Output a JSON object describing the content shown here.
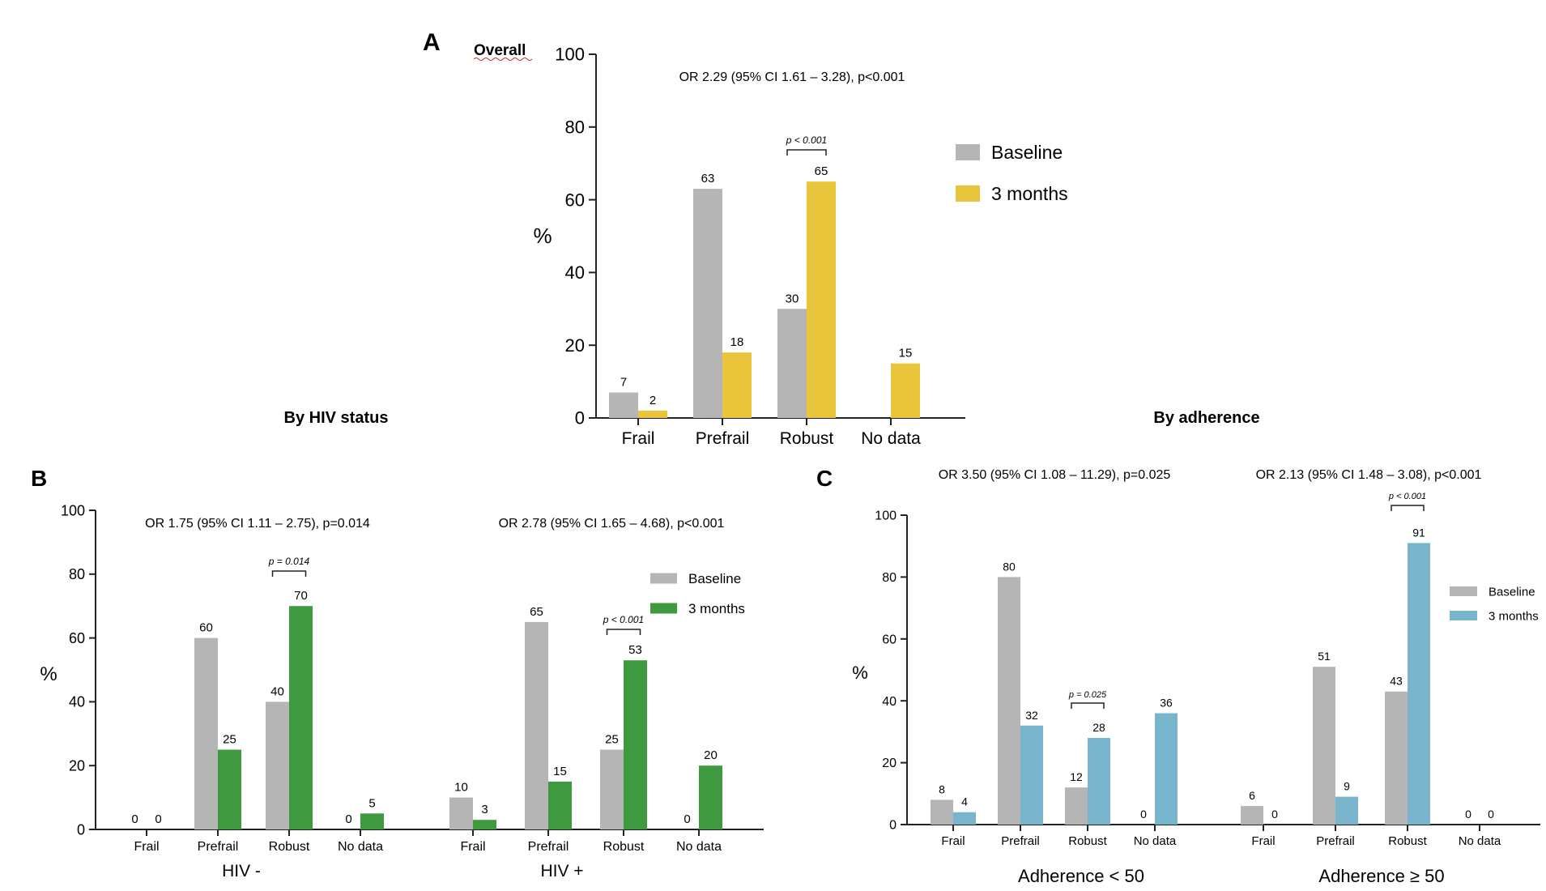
{
  "colors": {
    "baseline": "#b5b5b5",
    "panelA": "#e8c53a",
    "panelB": "#3f9a3f",
    "panelC": "#78b5cc",
    "axis": "#222222"
  },
  "section_titles": {
    "hiv": "By HIV status",
    "adherence": "By adherence"
  },
  "chart_data": [
    {
      "id": "A",
      "type": "bar",
      "panel_letter": "A",
      "title": "Overall",
      "ylabel": "%",
      "ylim": [
        0,
        100
      ],
      "yticks": [
        0,
        20,
        40,
        60,
        80,
        100
      ],
      "legend": [
        "Baseline",
        "3 months"
      ],
      "legend_position": "right",
      "groups": [
        {
          "label": "",
          "annotation": "OR 2.29 (95% CI 1.61 – 3.28), p<0.001",
          "categories": [
            "Frail",
            "Prefrail",
            "Robust",
            "No data"
          ],
          "series": [
            {
              "name": "Baseline",
              "values": [
                7,
                63,
                30,
                null
              ],
              "labels": [
                "7",
                "63",
                "30",
                ""
              ]
            },
            {
              "name": "3 months",
              "values": [
                2,
                18,
                65,
                15
              ],
              "labels": [
                "2",
                "18",
                "65",
                "15"
              ]
            }
          ],
          "bracket": {
            "category_index": 2,
            "text": "p < 0.001"
          }
        }
      ]
    },
    {
      "id": "B",
      "type": "bar",
      "panel_letter": "B",
      "title": "",
      "ylabel": "%",
      "ylim": [
        0,
        100
      ],
      "yticks": [
        0,
        20,
        40,
        60,
        80,
        100
      ],
      "legend": [
        "Baseline",
        "3 months"
      ],
      "legend_position": "top-right",
      "groups": [
        {
          "label": "HIV -",
          "annotation": "OR 1.75 (95% CI 1.11 – 2.75), p=0.014",
          "categories": [
            "Frail",
            "Prefrail",
            "Robust",
            "No data"
          ],
          "series": [
            {
              "name": "Baseline",
              "values": [
                0,
                60,
                40,
                0
              ],
              "labels": [
                "0",
                "60",
                "40",
                "0"
              ]
            },
            {
              "name": "3 months",
              "values": [
                0,
                25,
                70,
                5
              ],
              "labels": [
                "0",
                "25",
                "70",
                "5"
              ]
            }
          ],
          "bracket": {
            "category_index": 2,
            "text": "p = 0.014"
          }
        },
        {
          "label": "HIV +",
          "annotation": "OR 2.78 (95% CI 1.65 – 4.68), p<0.001",
          "categories": [
            "Frail",
            "Prefrail",
            "Robust",
            "No data"
          ],
          "series": [
            {
              "name": "Baseline",
              "values": [
                10,
                65,
                25,
                0
              ],
              "labels": [
                "10",
                "65",
                "25",
                "0"
              ]
            },
            {
              "name": "3 months",
              "values": [
                3,
                15,
                53,
                20
              ],
              "labels": [
                "3",
                "15",
                "53",
                "20"
              ]
            }
          ],
          "bracket": {
            "category_index": 2,
            "text": "p < 0.001"
          }
        }
      ]
    },
    {
      "id": "C",
      "type": "bar",
      "panel_letter": "C",
      "title": "",
      "ylabel": "%",
      "ylim": [
        0,
        100
      ],
      "yticks": [
        0,
        20,
        40,
        60,
        80,
        100
      ],
      "legend": [
        "Baseline",
        "3 months"
      ],
      "legend_position": "right",
      "groups": [
        {
          "label": "Adherence < 50",
          "annotation": "OR 3.50 (95% CI 1.08 – 11.29), p=0.025",
          "categories": [
            "Frail",
            "Prefrail",
            "Robust",
            "No data"
          ],
          "series": [
            {
              "name": "Baseline",
              "values": [
                8,
                80,
                12,
                0
              ],
              "labels": [
                "8",
                "80",
                "12",
                "0"
              ]
            },
            {
              "name": "3 months",
              "values": [
                4,
                32,
                28,
                36
              ],
              "labels": [
                "4",
                "32",
                "28",
                "36"
              ]
            }
          ],
          "bracket": {
            "category_index": 2,
            "text": "p = 0.025"
          }
        },
        {
          "label": "Adherence ≥ 50",
          "annotation": "OR 2.13 (95% CI 1.48 – 3.08), p<0.001",
          "categories": [
            "Frail",
            "Prefrail",
            "Robust",
            "No data"
          ],
          "series": [
            {
              "name": "Baseline",
              "values": [
                6,
                51,
                43,
                0
              ],
              "labels": [
                "6",
                "51",
                "43",
                "0"
              ]
            },
            {
              "name": "3 months",
              "values": [
                0,
                9,
                91,
                0
              ],
              "labels": [
                "0",
                "9",
                "91",
                "0"
              ]
            }
          ],
          "bracket": {
            "category_index": 2,
            "text": "p < 0.001"
          }
        }
      ]
    }
  ]
}
